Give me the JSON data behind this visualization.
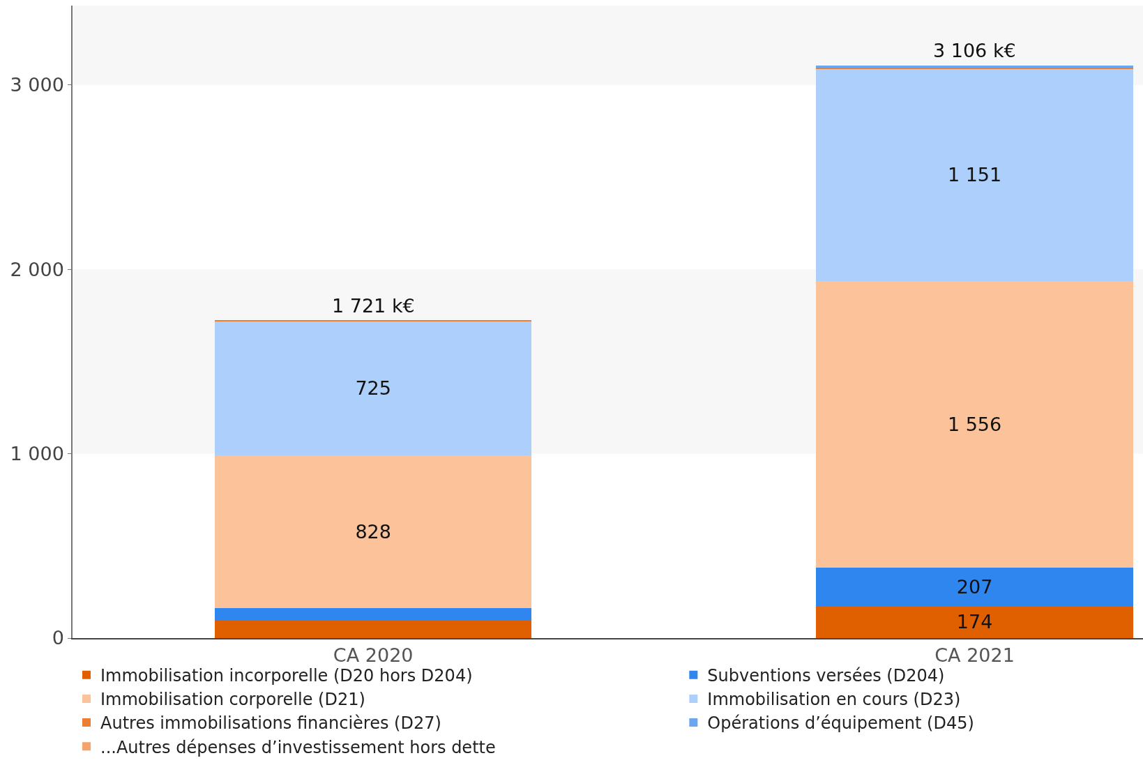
{
  "chart_data": {
    "type": "bar",
    "stacked": true,
    "categories": [
      "CA 2020",
      "CA 2021"
    ],
    "series": [
      {
        "name": "Immobilisation incorporelle (D20 hors D204)",
        "color": "#e06000",
        "values": [
          94,
          174
        ],
        "value_labels": [
          null,
          "174"
        ]
      },
      {
        "name": "Subventions versées (D204)",
        "color": "#2e86ee",
        "values": [
          70,
          207
        ],
        "value_labels": [
          null,
          "207"
        ]
      },
      {
        "name": "Immobilisation corporelle (D21)",
        "color": "#fcc39a",
        "values": [
          828,
          1556
        ],
        "value_labels": [
          "828",
          "1 556"
        ]
      },
      {
        "name": "Immobilisation en cours (D23)",
        "color": "#acd0fb",
        "values": [
          725,
          1151
        ],
        "value_labels": [
          "725",
          "1 151"
        ]
      },
      {
        "name": "Autres immobilisations financières (D27)",
        "color": "#ed7d31",
        "values": [
          4,
          6
        ]
      },
      {
        "name": "Opérations d’équipement (D45)",
        "color": "#6ba6f0",
        "values": [
          0,
          12
        ]
      },
      {
        "name": "...Autres dépenses d’investissement hors dette",
        "color": "#f4a46a",
        "values": [
          0,
          0
        ]
      }
    ],
    "totals": [
      "1 721 k€",
      "3 106 k€"
    ],
    "ylim": [
      0,
      3430
    ],
    "yticks": [
      0,
      {
        "value": 1000,
        "label": "1 000"
      },
      {
        "value": 2000,
        "label": "2 000"
      },
      {
        "value": 3000,
        "label": "3 000"
      }
    ],
    "bands": [
      {
        "axis": "y",
        "from": 1000,
        "to": 2000,
        "color": "#f7f7f7"
      },
      {
        "axis": "y",
        "from": 3000,
        "to": 3430,
        "color": "#f7f7f7"
      }
    ],
    "legend": "bottom"
  }
}
